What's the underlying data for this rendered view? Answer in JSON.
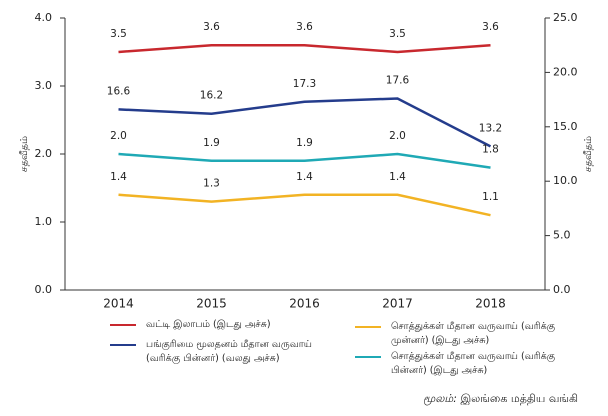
{
  "chart_data": {
    "type": "line",
    "categories": [
      "2014",
      "2015",
      "2016",
      "2017",
      "2018"
    ],
    "series": [
      {
        "name": "வட்டி இலாபம் (இடது அச்சு)",
        "color": "#c8282e",
        "axis": "y",
        "values": [
          3.5,
          3.6,
          3.6,
          3.5,
          3.6
        ]
      },
      {
        "name": "பங்குரிமை மூலதனம் மீதான வருவாய் (வரிக்கு பின்னர்) (வலது அச்சு)",
        "color": "#243c8c",
        "axis": "y2",
        "values": [
          16.6,
          16.2,
          17.3,
          17.6,
          13.2
        ]
      },
      {
        "name": "சொத்துக்கள் மீதான வருவாய் (வரிக்கு முன்னர்) (இடது அச்சு)",
        "color": "#f2b324",
        "axis": "y",
        "values": [
          1.4,
          1.3,
          1.4,
          1.4,
          1.1
        ]
      },
      {
        "name": "சொத்துக்கள் மீதான வருவாய் (வரிக்கு பின்னர்) (இடது அச்சு)",
        "color": "#1fa9b5",
        "axis": "y",
        "values": [
          2.0,
          1.9,
          1.9,
          2.0,
          1.8
        ],
        "value_labels": [
          "2.0",
          "1.9",
          "1.9",
          "2.0",
          "1.8"
        ]
      }
    ],
    "ylabel": "சதவீதம்",
    "y2label": "சதவீதம்",
    "ylim": [
      0,
      4
    ],
    "yticks": [
      {
        "value": 0,
        "label": "0.0"
      },
      {
        "value": 1,
        "label": "1.0"
      },
      {
        "value": 2,
        "label": "2.0"
      },
      {
        "value": 3,
        "label": "3.0"
      },
      {
        "value": 4,
        "label": "4.0"
      }
    ],
    "y2lim": [
      0,
      25
    ],
    "y2ticks": [
      {
        "value": 0,
        "label": "0.0"
      },
      {
        "value": 5,
        "label": "5.0"
      },
      {
        "value": 10,
        "label": "10.0"
      },
      {
        "value": 15,
        "label": "15.0"
      },
      {
        "value": 20,
        "label": "20.0"
      },
      {
        "value": 25,
        "label": "25.0"
      }
    ],
    "source_label": "மூலம்:",
    "source": "இலங்கை மத்திய வங்கி"
  }
}
